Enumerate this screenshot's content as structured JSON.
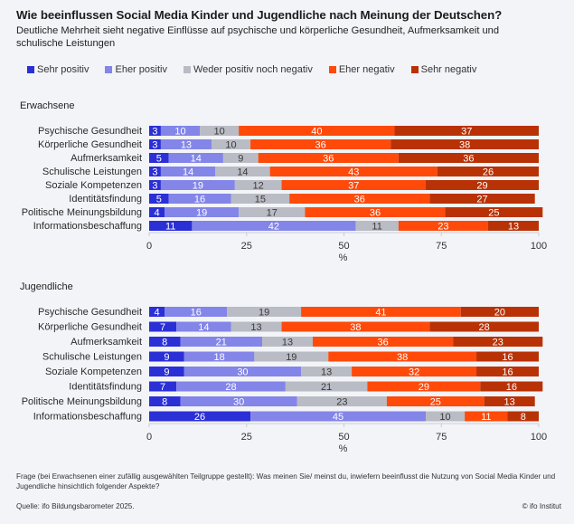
{
  "header": {
    "title": "Wie beeinflussen Social Media Kinder und Jugendliche nach Meinung der Deutschen?",
    "subtitle": "Deutliche Mehrheit sieht negative Einflüsse auf psychische und körperliche Gesundheit, Aufmerksamkeit und schulische Leistungen"
  },
  "legend": [
    {
      "label": "Sehr positiv",
      "color": "#2b2fd6"
    },
    {
      "label": "Eher positiv",
      "color": "#8385e8"
    },
    {
      "label": "Weder positiv noch negativ",
      "color": "#b9bcc4"
    },
    {
      "label": "Eher negativ",
      "color": "#ff4a0a"
    },
    {
      "label": "Sehr negativ",
      "color": "#b83206"
    }
  ],
  "chart_data": [
    {
      "type": "bar",
      "orientation": "horizontal",
      "stacked": true,
      "title": "Erwachsene",
      "xlabel": "%",
      "xlim": [
        0,
        100
      ],
      "xticks": [
        0,
        25,
        50,
        75,
        100
      ],
      "categories": [
        "Psychische Gesundheit",
        "Körperliche Gesundheit",
        "Aufmerksamkeit",
        "Schulische Leistungen",
        "Soziale Kompetenzen",
        "Identitätsfindung",
        "Politische Meinungsbildung",
        "Informationsbeschaffung"
      ],
      "series": [
        {
          "name": "Sehr positiv",
          "values": [
            3,
            3,
            5,
            3,
            3,
            5,
            4,
            11
          ]
        },
        {
          "name": "Eher positiv",
          "values": [
            10,
            13,
            14,
            14,
            19,
            16,
            19,
            42
          ]
        },
        {
          "name": "Weder positiv noch negativ",
          "values": [
            10,
            10,
            9,
            14,
            12,
            15,
            17,
            11
          ]
        },
        {
          "name": "Eher negativ",
          "values": [
            40,
            36,
            36,
            43,
            37,
            36,
            36,
            23
          ]
        },
        {
          "name": "Sehr negativ",
          "values": [
            37,
            38,
            36,
            26,
            29,
            27,
            25,
            13
          ]
        }
      ]
    },
    {
      "type": "bar",
      "orientation": "horizontal",
      "stacked": true,
      "title": "Jugendliche",
      "xlabel": "%",
      "xlim": [
        0,
        100
      ],
      "xticks": [
        0,
        25,
        50,
        75,
        100
      ],
      "categories": [
        "Psychische Gesundheit",
        "Körperliche Gesundheit",
        "Aufmerksamkeit",
        "Schulische Leistungen",
        "Soziale Kompetenzen",
        "Identitätsfindung",
        "Politische Meinungsbildung",
        "Informationsbeschaffung"
      ],
      "series": [
        {
          "name": "Sehr positiv",
          "values": [
            4,
            7,
            8,
            9,
            9,
            7,
            8,
            26
          ]
        },
        {
          "name": "Eher positiv",
          "values": [
            16,
            14,
            21,
            18,
            30,
            28,
            30,
            45
          ]
        },
        {
          "name": "Weder positiv noch negativ",
          "values": [
            19,
            13,
            13,
            19,
            13,
            21,
            23,
            10
          ]
        },
        {
          "name": "Eher negativ",
          "values": [
            41,
            38,
            36,
            38,
            32,
            29,
            25,
            11
          ]
        },
        {
          "name": "Sehr negativ",
          "values": [
            20,
            28,
            23,
            16,
            16,
            16,
            13,
            8
          ]
        }
      ]
    }
  ],
  "footer": {
    "question": "Frage (bei Erwachsenen einer zufällig ausgewählten Teilgruppe gestellt): Was meinen Sie/ meinst du, inwiefern beeinflusst die Nutzung von Social Media Kinder und Jugendliche hinsichtlich folgender Aspekte?",
    "source": "Quelle: ifo Bildungsbarometer 2025.",
    "copyright": "© ifo Institut"
  }
}
